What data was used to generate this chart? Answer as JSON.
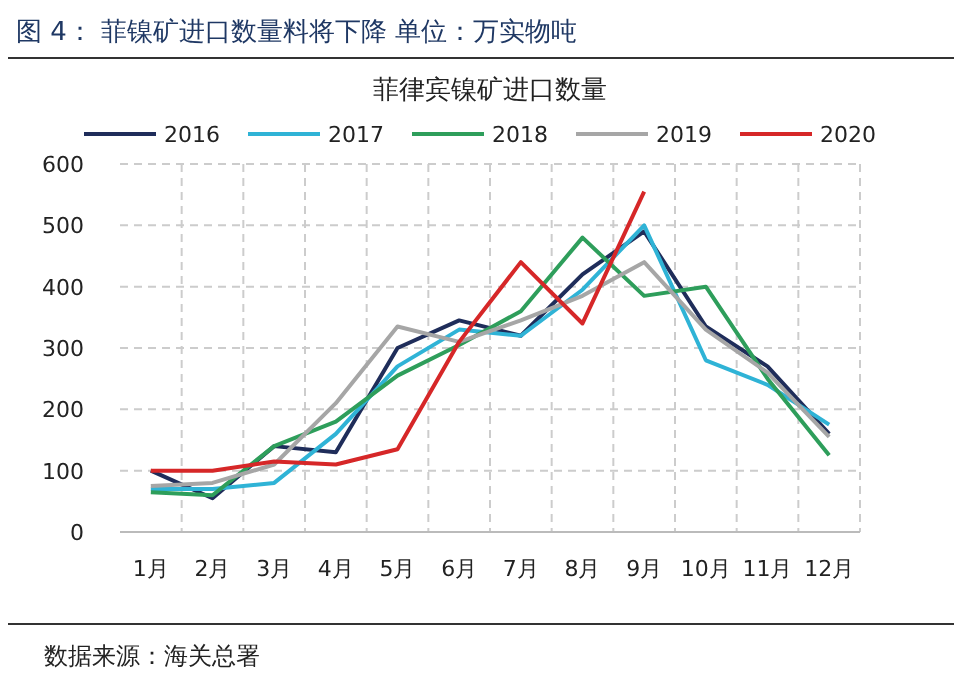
{
  "chart_data": {
    "type": "line",
    "title": "图 4：  菲镍矿进口数量料将下降    单位：万实物吨",
    "subtitle": "菲律宾镍矿进口数量",
    "categories": [
      "1月",
      "2月",
      "3月",
      "4月",
      "5月",
      "6月",
      "7月",
      "8月",
      "9月",
      "10月",
      "11月",
      "12月"
    ],
    "series": [
      {
        "name": "2016",
        "color": "#1f2d5a",
        "values": [
          100,
          55,
          140,
          130,
          300,
          345,
          320,
          420,
          490,
          335,
          270,
          160
        ]
      },
      {
        "name": "2017",
        "color": "#2fb3d6",
        "values": [
          70,
          70,
          80,
          160,
          270,
          330,
          320,
          395,
          500,
          280,
          240,
          175
        ]
      },
      {
        "name": "2018",
        "color": "#2e9e5b",
        "values": [
          65,
          60,
          140,
          180,
          255,
          305,
          360,
          480,
          385,
          400,
          250,
          125
        ]
      },
      {
        "name": "2019",
        "color": "#a6a6a6",
        "values": [
          75,
          80,
          110,
          210,
          335,
          310,
          345,
          385,
          440,
          330,
          260,
          155
        ]
      },
      {
        "name": "2020",
        "color": "#d62728",
        "values": [
          100,
          100,
          115,
          110,
          135,
          310,
          440,
          340,
          555,
          null,
          null,
          null
        ]
      }
    ],
    "ylim": [
      0,
      600
    ],
    "yticks": [
      0,
      100,
      200,
      300,
      400,
      500,
      600
    ],
    "grid": true,
    "legend": "top",
    "marker": "none",
    "line_style": "solid",
    "annotations": [
      "数据来源：海关总署"
    ]
  }
}
